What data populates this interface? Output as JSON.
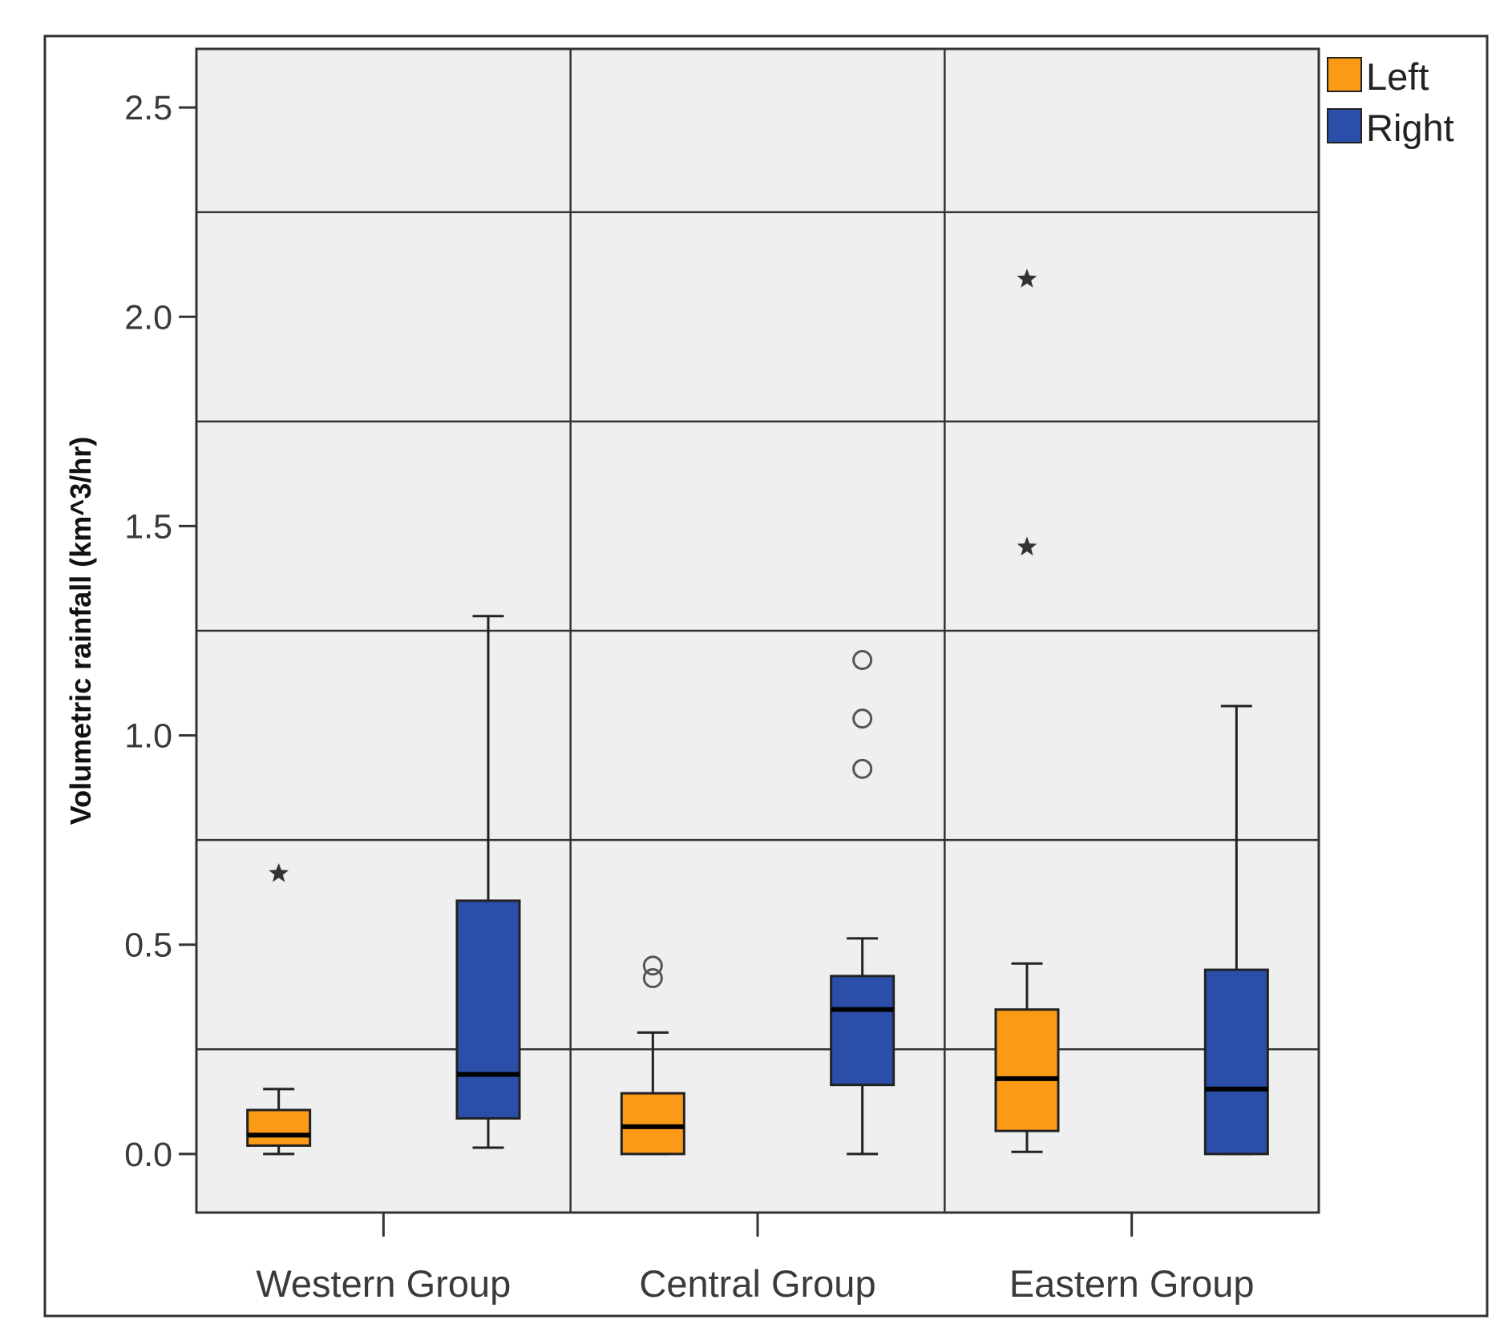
{
  "chart_data": {
    "type": "boxplot",
    "title": "",
    "xlabel": "",
    "ylabel": "Volumetric rainfall (km^3/hr)",
    "ylim": [
      -0.14,
      2.64
    ],
    "yticks": [
      {
        "value": 0.0,
        "label": "0.0"
      },
      {
        "value": 0.5,
        "label": "0.5"
      },
      {
        "value": 1.0,
        "label": "1.0"
      },
      {
        "value": 1.5,
        "label": "1.5"
      },
      {
        "value": 2.0,
        "label": "2.0"
      },
      {
        "value": 2.5,
        "label": "2.5"
      }
    ],
    "grid_y": [
      0.25,
      0.75,
      1.25,
      1.75,
      2.25
    ],
    "grid": true,
    "legend_position": "top-right",
    "categories": [
      "Western Group",
      "Central Group",
      "Eastern Group"
    ],
    "series": [
      {
        "name": "Left",
        "color": "#fb9a17",
        "boxes": [
          {
            "whisker_low": 0.0,
            "q1": 0.02,
            "median": 0.045,
            "q3": 0.105,
            "whisker_high": 0.155,
            "outliers": [],
            "extremes": [
              0.67
            ]
          },
          {
            "whisker_low": 0.0,
            "q1": 0.0,
            "median": 0.065,
            "q3": 0.145,
            "whisker_high": 0.29,
            "outliers": [
              0.42,
              0.45
            ],
            "extremes": []
          },
          {
            "whisker_low": 0.005,
            "q1": 0.055,
            "median": 0.18,
            "q3": 0.345,
            "whisker_high": 0.455,
            "outliers": [],
            "extremes": [
              1.45,
              2.09
            ]
          }
        ]
      },
      {
        "name": "Right",
        "color": "#2b4fa8",
        "boxes": [
          {
            "whisker_low": 0.015,
            "q1": 0.085,
            "median": 0.19,
            "q3": 0.605,
            "whisker_high": 1.285,
            "outliers": [],
            "extremes": []
          },
          {
            "whisker_low": 0.0,
            "q1": 0.165,
            "median": 0.345,
            "q3": 0.425,
            "whisker_high": 0.515,
            "outliers": [
              0.92,
              1.04,
              1.18
            ],
            "extremes": []
          },
          {
            "whisker_low": 0.0,
            "q1": 0.0,
            "median": 0.155,
            "q3": 0.44,
            "whisker_high": 1.07,
            "outliers": [],
            "extremes": []
          }
        ]
      }
    ]
  }
}
